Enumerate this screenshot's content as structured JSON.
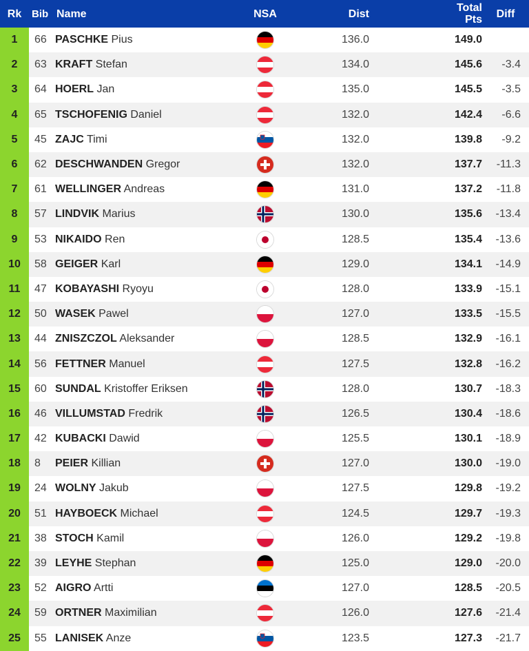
{
  "columns": {
    "rk": "Rk",
    "bib": "Bib",
    "name": "Name",
    "nsa": "NSA",
    "dist": "Dist",
    "total_line1": "Total",
    "total_line2": "Pts",
    "diff": "Diff"
  },
  "colors": {
    "header": "#0a3ea8",
    "rank_cell": "#8cd52e"
  },
  "rows": [
    {
      "rk": "1",
      "bib": "66",
      "last": "PASCHKE",
      "first": "Pius",
      "nsa": "GER",
      "dist": "136.0",
      "total": "149.0",
      "diff": ""
    },
    {
      "rk": "2",
      "bib": "63",
      "last": "KRAFT",
      "first": "Stefan",
      "nsa": "AUT",
      "dist": "134.0",
      "total": "145.6",
      "diff": "-3.4"
    },
    {
      "rk": "3",
      "bib": "64",
      "last": "HOERL",
      "first": "Jan",
      "nsa": "AUT",
      "dist": "135.0",
      "total": "145.5",
      "diff": "-3.5"
    },
    {
      "rk": "4",
      "bib": "65",
      "last": "TSCHOFENIG",
      "first": "Daniel",
      "nsa": "AUT",
      "dist": "132.0",
      "total": "142.4",
      "diff": "-6.6"
    },
    {
      "rk": "5",
      "bib": "45",
      "last": "ZAJC",
      "first": "Timi",
      "nsa": "SLO",
      "dist": "132.0",
      "total": "139.8",
      "diff": "-9.2"
    },
    {
      "rk": "6",
      "bib": "62",
      "last": "DESCHWANDEN",
      "first": "Gregor",
      "nsa": "SUI",
      "dist": "132.0",
      "total": "137.7",
      "diff": "-11.3"
    },
    {
      "rk": "7",
      "bib": "61",
      "last": "WELLINGER",
      "first": "Andreas",
      "nsa": "GER",
      "dist": "131.0",
      "total": "137.2",
      "diff": "-11.8"
    },
    {
      "rk": "8",
      "bib": "57",
      "last": "LINDVIK",
      "first": "Marius",
      "nsa": "NOR",
      "dist": "130.0",
      "total": "135.6",
      "diff": "-13.4"
    },
    {
      "rk": "9",
      "bib": "53",
      "last": "NIKAIDO",
      "first": "Ren",
      "nsa": "JPN",
      "dist": "128.5",
      "total": "135.4",
      "diff": "-13.6"
    },
    {
      "rk": "10",
      "bib": "58",
      "last": "GEIGER",
      "first": "Karl",
      "nsa": "GER",
      "dist": "129.0",
      "total": "134.1",
      "diff": "-14.9"
    },
    {
      "rk": "11",
      "bib": "47",
      "last": "KOBAYASHI",
      "first": "Ryoyu",
      "nsa": "JPN",
      "dist": "128.0",
      "total": "133.9",
      "diff": "-15.1"
    },
    {
      "rk": "12",
      "bib": "50",
      "last": "WASEK",
      "first": "Pawel",
      "nsa": "POL",
      "dist": "127.0",
      "total": "133.5",
      "diff": "-15.5"
    },
    {
      "rk": "13",
      "bib": "44",
      "last": "ZNISZCZOL",
      "first": "Aleksander",
      "nsa": "POL",
      "dist": "128.5",
      "total": "132.9",
      "diff": "-16.1"
    },
    {
      "rk": "14",
      "bib": "56",
      "last": "FETTNER",
      "first": "Manuel",
      "nsa": "AUT",
      "dist": "127.5",
      "total": "132.8",
      "diff": "-16.2"
    },
    {
      "rk": "15",
      "bib": "60",
      "last": "SUNDAL",
      "first": "Kristoffer Eriksen",
      "nsa": "NOR",
      "dist": "128.0",
      "total": "130.7",
      "diff": "-18.3"
    },
    {
      "rk": "16",
      "bib": "46",
      "last": "VILLUMSTAD",
      "first": "Fredrik",
      "nsa": "NOR",
      "dist": "126.5",
      "total": "130.4",
      "diff": "-18.6"
    },
    {
      "rk": "17",
      "bib": "42",
      "last": "KUBACKI",
      "first": "Dawid",
      "nsa": "POL",
      "dist": "125.5",
      "total": "130.1",
      "diff": "-18.9"
    },
    {
      "rk": "18",
      "bib": "8",
      "last": "PEIER",
      "first": "Killian",
      "nsa": "SUI",
      "dist": "127.0",
      "total": "130.0",
      "diff": "-19.0"
    },
    {
      "rk": "19",
      "bib": "24",
      "last": "WOLNY",
      "first": "Jakub",
      "nsa": "POL",
      "dist": "127.5",
      "total": "129.8",
      "diff": "-19.2"
    },
    {
      "rk": "20",
      "bib": "51",
      "last": "HAYBOECK",
      "first": "Michael",
      "nsa": "AUT",
      "dist": "124.5",
      "total": "129.7",
      "diff": "-19.3"
    },
    {
      "rk": "21",
      "bib": "38",
      "last": "STOCH",
      "first": "Kamil",
      "nsa": "POL",
      "dist": "126.0",
      "total": "129.2",
      "diff": "-19.8"
    },
    {
      "rk": "22",
      "bib": "39",
      "last": "LEYHE",
      "first": "Stephan",
      "nsa": "GER",
      "dist": "125.0",
      "total": "129.0",
      "diff": "-20.0"
    },
    {
      "rk": "23",
      "bib": "52",
      "last": "AIGRO",
      "first": "Artti",
      "nsa": "EST",
      "dist": "127.0",
      "total": "128.5",
      "diff": "-20.5"
    },
    {
      "rk": "24",
      "bib": "59",
      "last": "ORTNER",
      "first": "Maximilian",
      "nsa": "AUT",
      "dist": "126.0",
      "total": "127.6",
      "diff": "-21.4"
    },
    {
      "rk": "25",
      "bib": "55",
      "last": "LANISEK",
      "first": "Anze",
      "nsa": "SLO",
      "dist": "123.5",
      "total": "127.3",
      "diff": "-21.7"
    }
  ]
}
